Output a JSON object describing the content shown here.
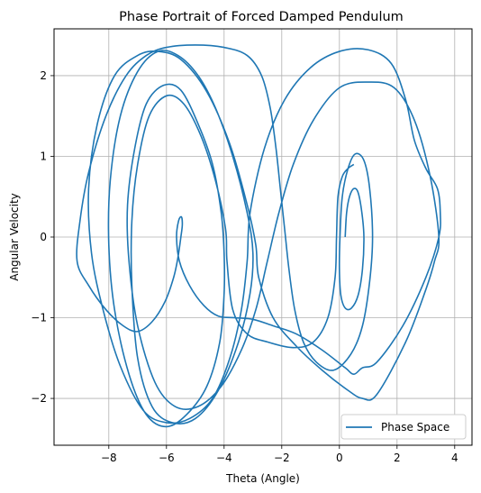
{
  "chart_data": {
    "type": "line",
    "title": "Phase Portrait of Forced Damped Pendulum",
    "xlabel": "Theta (Angle)",
    "ylabel": "Angular Velocity",
    "xlim": [
      -9.9,
      4.6
    ],
    "ylim": [
      -2.58,
      2.58
    ],
    "xticks": [
      -8,
      -6,
      -4,
      -2,
      0,
      2,
      4
    ],
    "xtick_labels": [
      "−8",
      "−6",
      "−4",
      "−2",
      "0",
      "2",
      "4"
    ],
    "yticks": [
      -2,
      -1,
      0,
      1,
      2
    ],
    "ytick_labels": [
      "−2",
      "−1",
      "0",
      "1",
      "2"
    ],
    "grid": true,
    "legend_position": "lower-right",
    "series": [
      {
        "name": "Phase Space",
        "color": "#1f77b4",
        "points": [
          [
            0.2,
            0.0
          ],
          [
            0.25,
            0.3
          ],
          [
            0.35,
            0.5
          ],
          [
            0.5,
            0.6
          ],
          [
            0.65,
            0.55
          ],
          [
            0.78,
            0.3
          ],
          [
            0.85,
            0.0
          ],
          [
            0.8,
            -0.4
          ],
          [
            0.65,
            -0.72
          ],
          [
            0.42,
            -0.88
          ],
          [
            0.2,
            -0.88
          ],
          [
            0.05,
            -0.72
          ],
          [
            0.0,
            -0.4
          ],
          [
            0.02,
            0.0
          ],
          [
            0.1,
            0.5
          ],
          [
            0.3,
            0.85
          ],
          [
            0.55,
            1.03
          ],
          [
            0.85,
            0.95
          ],
          [
            1.05,
            0.6
          ],
          [
            1.15,
            0.0
          ],
          [
            1.05,
            -0.55
          ],
          [
            0.8,
            -1.1
          ],
          [
            0.4,
            -1.45
          ],
          [
            -0.2,
            -1.65
          ],
          [
            -0.8,
            -1.55
          ],
          [
            -1.25,
            -1.3
          ],
          [
            -1.55,
            -0.9
          ],
          [
            -1.75,
            -0.4
          ],
          [
            -1.9,
            0.1
          ],
          [
            -2.05,
            0.6
          ],
          [
            -2.2,
            1.1
          ],
          [
            -2.4,
            1.6
          ],
          [
            -2.7,
            2.0
          ],
          [
            -3.2,
            2.25
          ],
          [
            -4.0,
            2.35
          ],
          [
            -5.0,
            2.38
          ],
          [
            -6.0,
            2.35
          ],
          [
            -6.7,
            2.25
          ],
          [
            -7.4,
            2.0
          ],
          [
            -8.1,
            1.5
          ],
          [
            -8.7,
            0.8
          ],
          [
            -9.0,
            0.2
          ],
          [
            -9.1,
            -0.3
          ],
          [
            -8.7,
            -0.6
          ],
          [
            -8.1,
            -0.9
          ],
          [
            -7.5,
            -1.1
          ],
          [
            -7.0,
            -1.17
          ],
          [
            -6.5,
            -1.05
          ],
          [
            -6.05,
            -0.8
          ],
          [
            -5.75,
            -0.5
          ],
          [
            -5.6,
            -0.25
          ],
          [
            -5.5,
            0.0
          ],
          [
            -5.45,
            0.15
          ],
          [
            -5.48,
            0.25
          ],
          [
            -5.58,
            0.2
          ],
          [
            -5.65,
            0.0
          ],
          [
            -5.55,
            -0.3
          ],
          [
            -5.2,
            -0.6
          ],
          [
            -4.7,
            -0.85
          ],
          [
            -4.2,
            -0.98
          ],
          [
            -3.6,
            -1.0
          ],
          [
            -3.0,
            -1.02
          ],
          [
            -2.3,
            -1.1
          ],
          [
            -1.5,
            -1.2
          ],
          [
            -0.6,
            -1.4
          ],
          [
            0.2,
            -1.62
          ],
          [
            0.5,
            -1.7
          ],
          [
            0.8,
            -1.62
          ],
          [
            1.3,
            -1.55
          ],
          [
            2.2,
            -1.1
          ],
          [
            3.0,
            -0.5
          ],
          [
            3.45,
            0.0
          ],
          [
            3.5,
            0.3
          ],
          [
            3.4,
            0.6
          ],
          [
            3.0,
            0.85
          ],
          [
            2.6,
            1.2
          ],
          [
            2.3,
            1.7
          ],
          [
            1.8,
            2.15
          ],
          [
            1.0,
            2.32
          ],
          [
            0.0,
            2.3
          ],
          [
            -1.0,
            2.1
          ],
          [
            -1.9,
            1.7
          ],
          [
            -2.6,
            1.1
          ],
          [
            -3.1,
            0.3
          ],
          [
            -3.2,
            -0.3
          ],
          [
            -3.4,
            -0.9
          ],
          [
            -3.8,
            -1.5
          ],
          [
            -4.4,
            -2.0
          ],
          [
            -5.2,
            -2.25
          ],
          [
            -6.0,
            -2.3
          ],
          [
            -6.8,
            -2.15
          ],
          [
            -7.6,
            -1.6
          ],
          [
            -8.2,
            -0.9
          ],
          [
            -8.6,
            -0.2
          ],
          [
            -8.7,
            0.6
          ],
          [
            -8.4,
            1.4
          ],
          [
            -7.8,
            2.0
          ],
          [
            -7.0,
            2.25
          ],
          [
            -6.3,
            2.3
          ],
          [
            -5.5,
            2.2
          ],
          [
            -4.6,
            1.8
          ],
          [
            -3.8,
            1.15
          ],
          [
            -3.2,
            0.4
          ],
          [
            -2.9,
            -0.1
          ],
          [
            -2.8,
            -0.5
          ],
          [
            -2.3,
            -1.0
          ],
          [
            -1.5,
            -1.35
          ],
          [
            -0.6,
            -1.65
          ],
          [
            0.3,
            -1.9
          ],
          [
            0.8,
            -2.0
          ],
          [
            1.3,
            -1.95
          ],
          [
            2.3,
            -1.3
          ],
          [
            3.0,
            -0.65
          ],
          [
            3.3,
            -0.3
          ],
          [
            3.45,
            0.0
          ],
          [
            3.15,
            0.75
          ],
          [
            2.6,
            1.45
          ],
          [
            1.9,
            1.85
          ],
          [
            1.0,
            1.92
          ],
          [
            0.0,
            1.85
          ],
          [
            -0.9,
            1.45
          ],
          [
            -1.6,
            0.9
          ],
          [
            -2.1,
            0.3
          ],
          [
            -2.5,
            -0.3
          ],
          [
            -2.9,
            -0.9
          ],
          [
            -3.4,
            -1.4
          ],
          [
            -4.1,
            -1.85
          ],
          [
            -4.9,
            -2.1
          ],
          [
            -5.7,
            -2.1
          ],
          [
            -6.4,
            -1.8
          ],
          [
            -7.0,
            -1.1
          ],
          [
            -7.3,
            -0.3
          ],
          [
            -7.35,
            0.4
          ],
          [
            -7.1,
            1.1
          ],
          [
            -6.7,
            1.65
          ],
          [
            -6.1,
            1.88
          ],
          [
            -5.5,
            1.82
          ],
          [
            -4.9,
            1.4
          ],
          [
            -4.4,
            0.9
          ],
          [
            -4.1,
            0.3
          ],
          [
            -4.0,
            -0.2
          ],
          [
            -4.0,
            -0.7
          ],
          [
            -4.15,
            -1.3
          ],
          [
            -4.6,
            -1.85
          ],
          [
            -5.3,
            -2.2
          ],
          [
            -6.0,
            -2.35
          ],
          [
            -6.7,
            -2.2
          ],
          [
            -7.3,
            -1.7
          ],
          [
            -7.8,
            -0.9
          ],
          [
            -8.0,
            -0.1
          ],
          [
            -7.95,
            0.7
          ],
          [
            -7.6,
            1.5
          ],
          [
            -7.0,
            2.05
          ],
          [
            -6.3,
            2.3
          ],
          [
            -5.6,
            2.25
          ],
          [
            -4.9,
            2.0
          ],
          [
            -4.3,
            1.6
          ],
          [
            -3.7,
            1.0
          ],
          [
            -3.2,
            0.3
          ],
          [
            -3.0,
            -0.2
          ],
          [
            -3.1,
            -0.7
          ],
          [
            -3.5,
            -1.3
          ],
          [
            -4.2,
            -1.9
          ],
          [
            -5.0,
            -2.25
          ],
          [
            -5.8,
            -2.3
          ],
          [
            -6.5,
            -2.1
          ],
          [
            -7.0,
            -1.5
          ],
          [
            -7.2,
            -0.6
          ],
          [
            -7.2,
            0.2
          ],
          [
            -7.0,
            0.9
          ],
          [
            -6.6,
            1.5
          ],
          [
            -6.0,
            1.75
          ],
          [
            -5.4,
            1.65
          ],
          [
            -4.8,
            1.25
          ],
          [
            -4.3,
            0.7
          ],
          [
            -3.95,
            0.1
          ],
          [
            -3.9,
            -0.3
          ],
          [
            -3.7,
            -0.9
          ],
          [
            -3.2,
            -1.2
          ],
          [
            -2.5,
            -1.3
          ],
          [
            -1.6,
            -1.37
          ],
          [
            -0.9,
            -1.3
          ],
          [
            -0.4,
            -1.0
          ],
          [
            -0.15,
            -0.5
          ],
          [
            -0.1,
            0.0
          ],
          [
            -0.05,
            0.5
          ],
          [
            0.1,
            0.75
          ],
          [
            0.3,
            0.85
          ],
          [
            0.5,
            0.9
          ]
        ]
      }
    ]
  }
}
